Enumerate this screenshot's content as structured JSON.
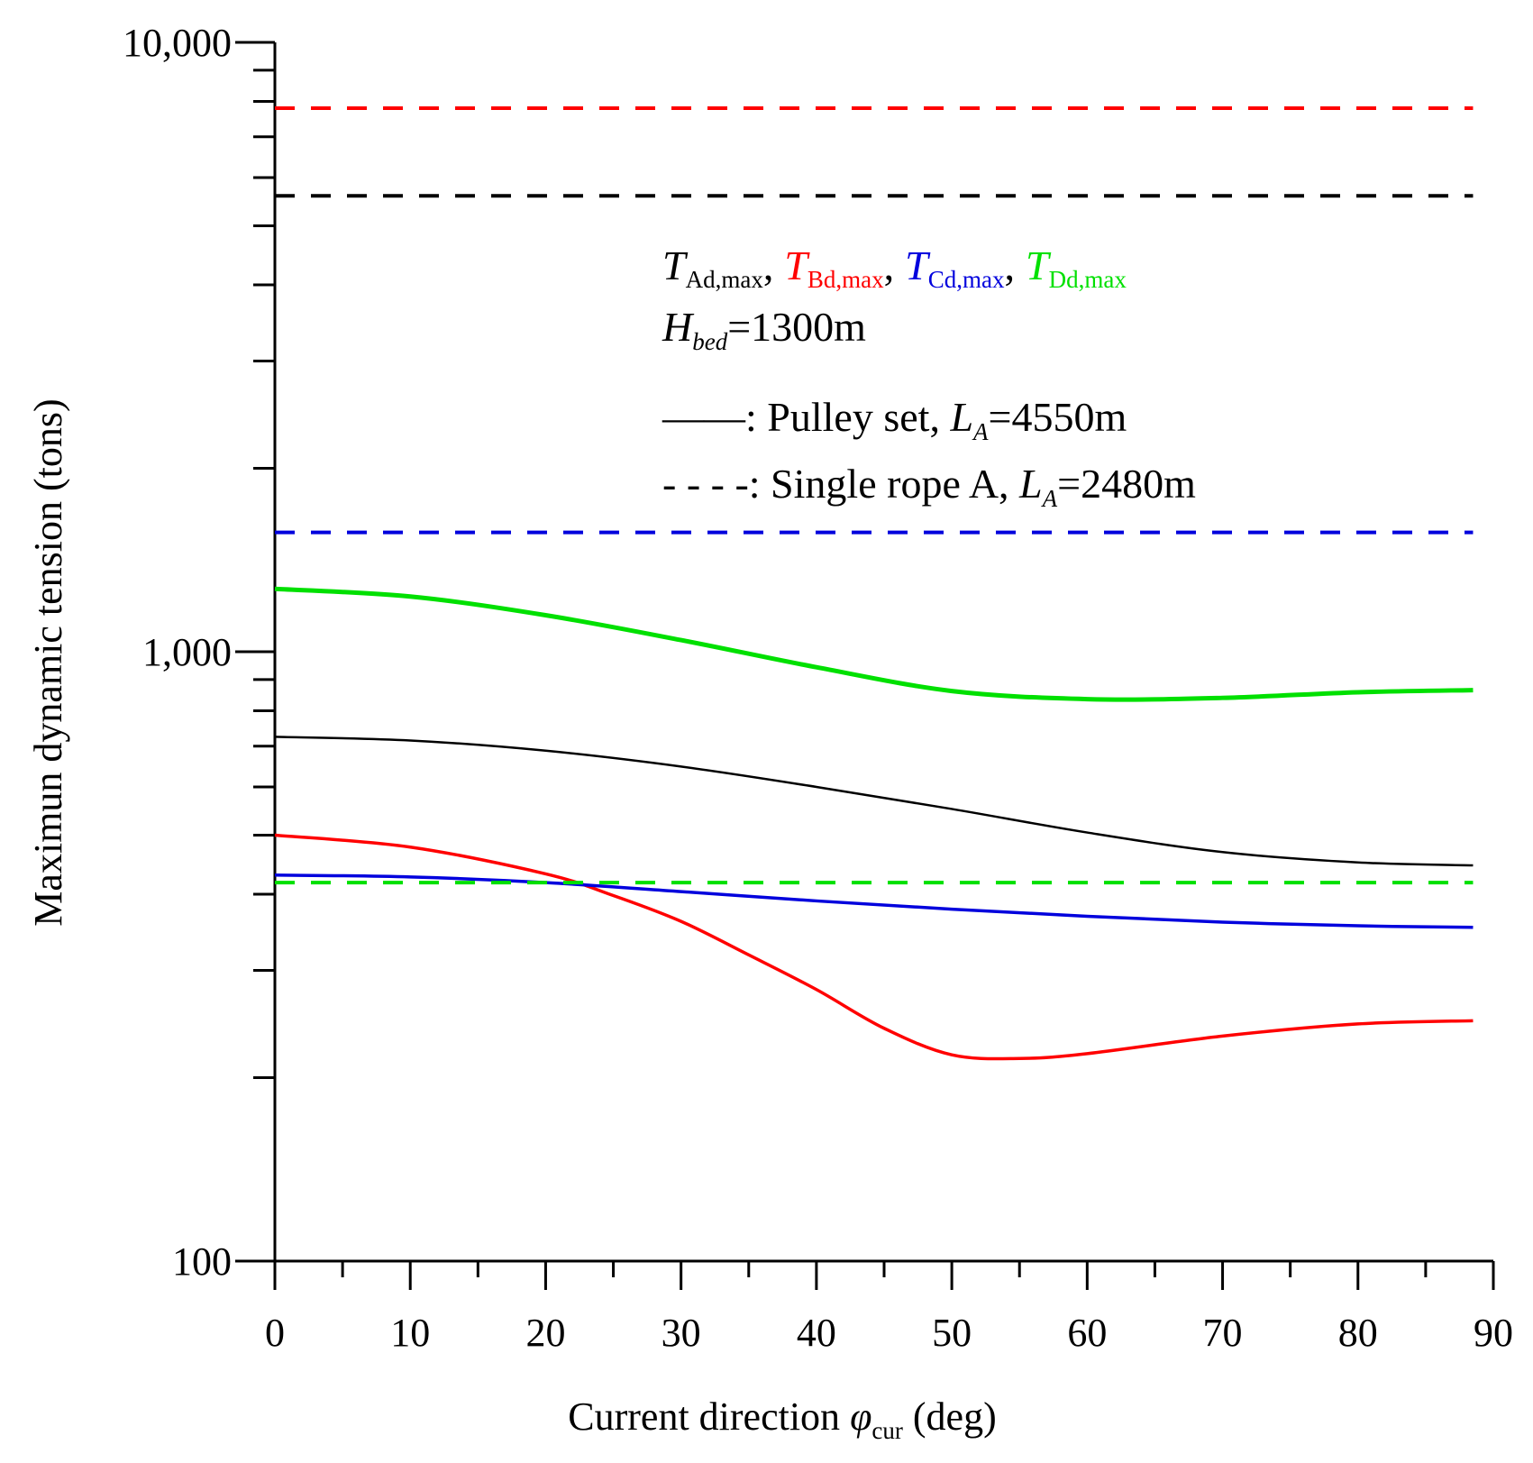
{
  "chart_data": {
    "type": "line",
    "y_scale": "log",
    "xlabel": {
      "text": "Current direction ",
      "symbol": "φ",
      "subscript": "cur",
      "unit": " (deg)"
    },
    "ylabel": "Maximun dynamic tension (tons)",
    "xlim": [
      0,
      90
    ],
    "ylim": [
      100,
      10000
    ],
    "x_ticks": [
      0,
      10,
      20,
      30,
      40,
      50,
      60,
      70,
      80,
      90
    ],
    "x_tick_labels": [
      "0",
      "10",
      "20",
      "30",
      "40",
      "50",
      "60",
      "70",
      "80",
      "90"
    ],
    "x_minor_ticks": [
      5,
      15,
      25,
      35,
      45,
      55,
      65,
      75,
      85
    ],
    "y_ticks": [
      100,
      1000,
      10000
    ],
    "y_tick_labels": [
      "100",
      "1,000",
      "10,000"
    ],
    "y_minor_ticks": [
      200,
      300,
      400,
      500,
      600,
      700,
      800,
      900,
      2000,
      3000,
      4000,
      5000,
      6000,
      7000,
      8000,
      9000
    ],
    "colors": {
      "A": "#000000",
      "B": "#ff0000",
      "C": "#0000dd",
      "D": "#00e000"
    },
    "legend": {
      "symbol": "T",
      "entries": [
        {
          "sub": "Ad,max",
          "sep": ",",
          "color": "#000000"
        },
        {
          "sub": "Bd,max",
          "sep": ",",
          "color": "#ff0000"
        },
        {
          "sub": "Cd,max",
          "sep": ",",
          "color": "#0000dd"
        },
        {
          "sub": "Dd,max",
          "sep": "",
          "color": "#00e000"
        }
      ],
      "depth": {
        "symbol": "H",
        "sub": "bed",
        "value": "=1300m"
      },
      "solid_entry": {
        "sample": "——",
        "text": ": Pulley set, ",
        "symbol": "L",
        "sub": "A",
        "value": "=4550m"
      },
      "dashed_entry": {
        "sample": "- - - -",
        "text": ": Single rope A, ",
        "symbol": "L",
        "sub": "A",
        "value": "=2480m"
      }
    },
    "series": [
      {
        "name": "T_Ad,max Pulley set",
        "style": "solid",
        "color": "#000000",
        "x": [
          0,
          10,
          20,
          30,
          40,
          50,
          60,
          70,
          80,
          88.5
        ],
        "y": [
          725,
          715,
          688,
          648,
          600,
          552,
          505,
          469,
          451,
          446
        ]
      },
      {
        "name": "T_Bd,max Pulley set",
        "style": "solid",
        "color": "#ff0000",
        "x": [
          0,
          10,
          20,
          25,
          30,
          35,
          40,
          45,
          50,
          55,
          60,
          70,
          80,
          88.5
        ],
        "y": [
          500,
          478,
          432,
          398,
          361,
          318,
          279,
          241,
          218,
          215,
          219,
          234,
          245,
          248
        ]
      },
      {
        "name": "T_Cd,max Pulley set",
        "style": "solid",
        "color": "#0000dd",
        "x": [
          0,
          10,
          20,
          30,
          40,
          50,
          60,
          70,
          80,
          88.5
        ],
        "y": [
          430,
          427,
          418,
          404,
          390,
          378,
          368,
          360,
          355,
          353
        ]
      },
      {
        "name": "T_Dd,max Pulley set",
        "style": "solid",
        "color": "#00e000",
        "x": [
          0,
          10,
          20,
          30,
          40,
          50,
          60,
          70,
          80,
          88.5
        ],
        "y": [
          1268,
          1232,
          1148,
          1045,
          943,
          862,
          836,
          840,
          858,
          865
        ]
      },
      {
        "name": "T_Bd,max Single rope A",
        "style": "dashed",
        "color": "#ff0000",
        "x": [
          0,
          88.5
        ],
        "y": [
          7800,
          7800
        ]
      },
      {
        "name": "T_Ad,max Single rope A",
        "style": "dashed",
        "color": "#000000",
        "x": [
          0,
          88.5
        ],
        "y": [
          5600,
          5600
        ]
      },
      {
        "name": "T_Cd,max Single rope A",
        "style": "dashed",
        "color": "#0000dd",
        "x": [
          0,
          88.5
        ],
        "y": [
          1570,
          1570
        ]
      },
      {
        "name": "T_Dd,max Single rope A",
        "style": "dashed",
        "color": "#00e000",
        "x": [
          0,
          88.5
        ],
        "y": [
          418,
          418
        ]
      }
    ]
  }
}
